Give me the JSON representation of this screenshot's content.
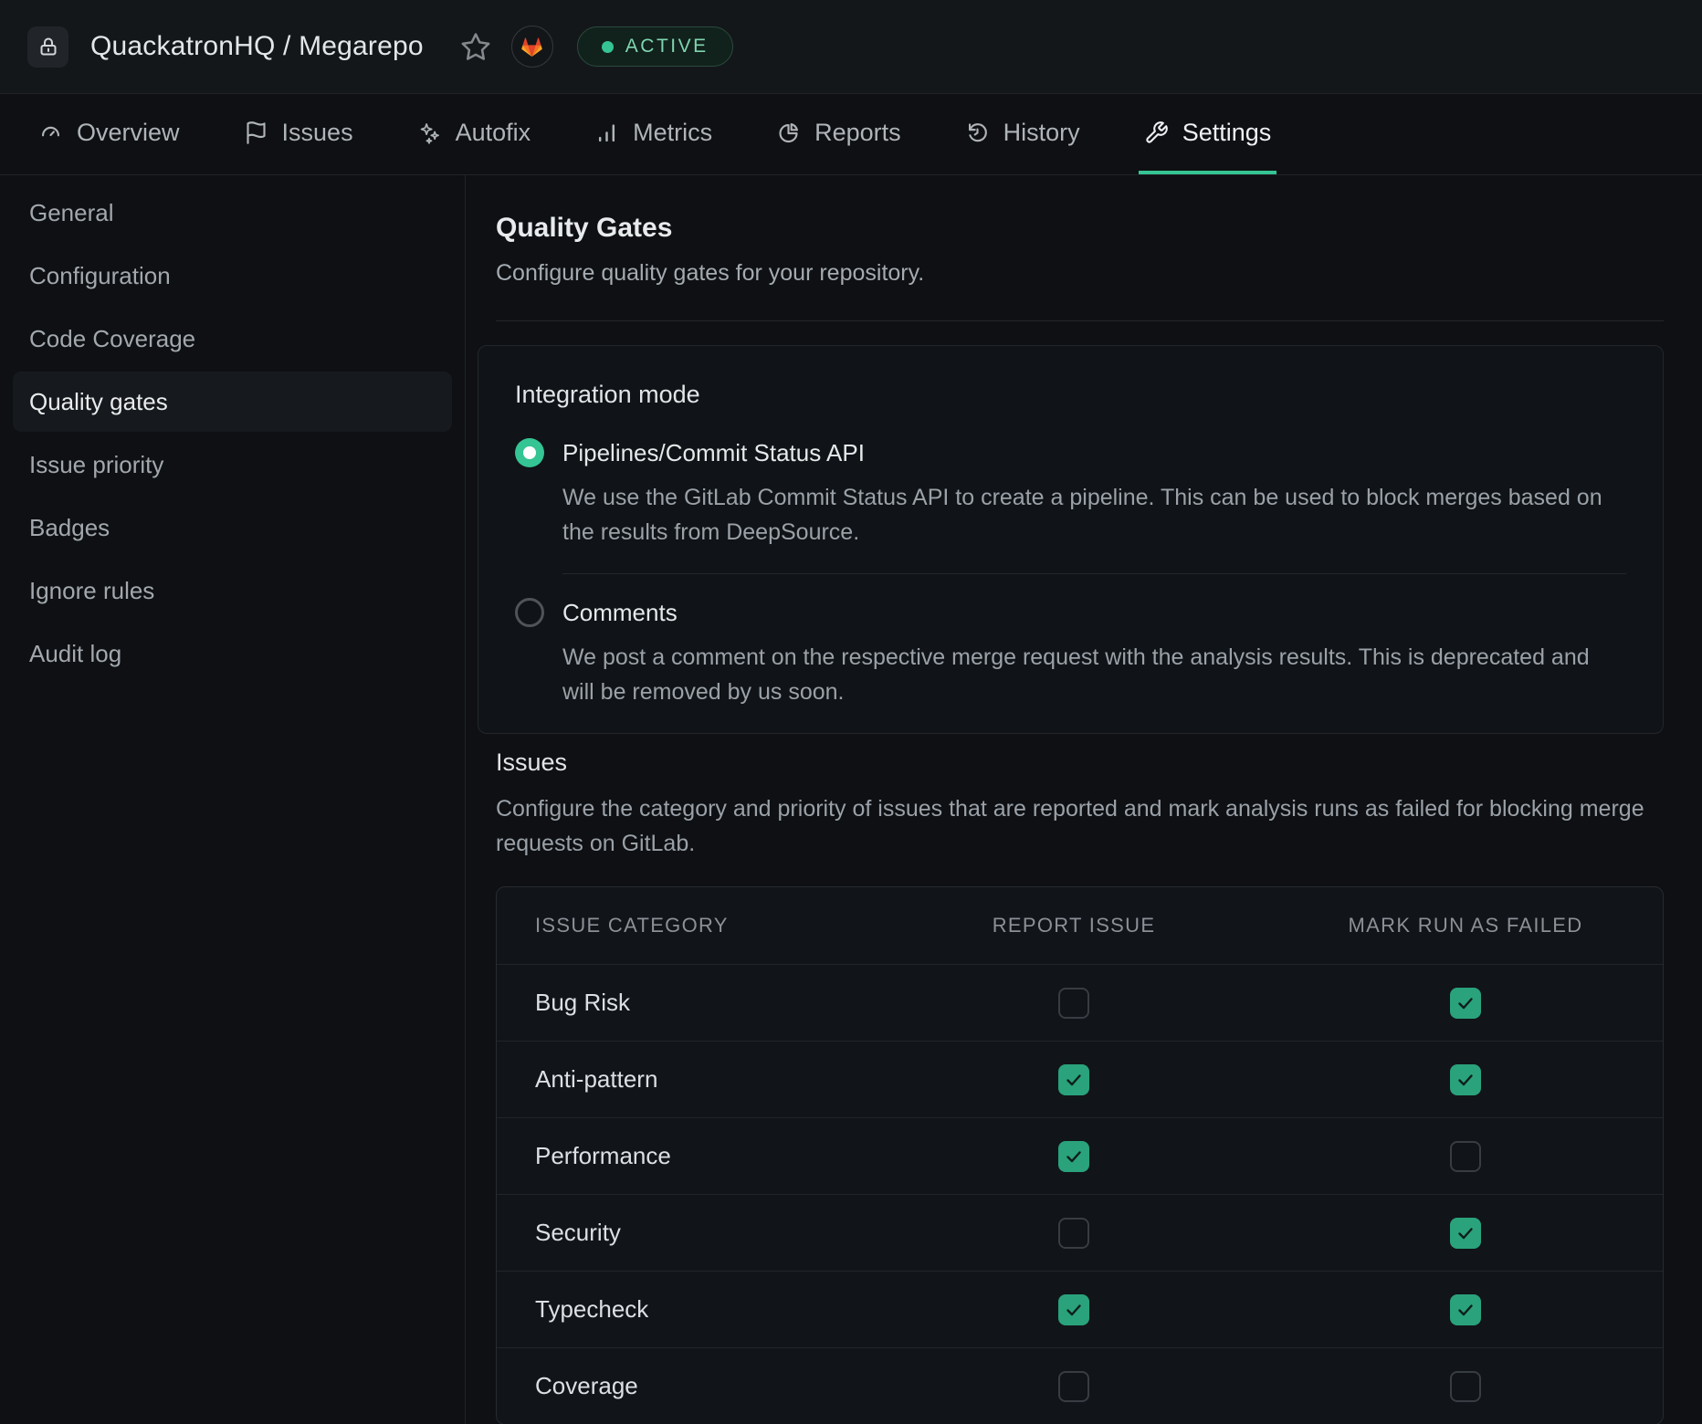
{
  "topbar": {
    "title": "QuackatronHQ / Megarepo",
    "status": "ACTIVE",
    "icons": [
      "lock-icon",
      "star-icon",
      "gitlab-icon"
    ]
  },
  "tabs": [
    {
      "label": "Overview",
      "icon": "gauge-icon",
      "active": false
    },
    {
      "label": "Issues",
      "icon": "flag-icon",
      "active": false
    },
    {
      "label": "Autofix",
      "icon": "sparkles-icon",
      "active": false
    },
    {
      "label": "Metrics",
      "icon": "bar-chart-icon",
      "active": false
    },
    {
      "label": "Reports",
      "icon": "pie-chart-icon",
      "active": false
    },
    {
      "label": "History",
      "icon": "history-icon",
      "active": false
    },
    {
      "label": "Settings",
      "icon": "wrench-icon",
      "active": true
    }
  ],
  "sidebar": {
    "items": [
      {
        "label": "General",
        "active": false
      },
      {
        "label": "Configuration",
        "active": false
      },
      {
        "label": "Code Coverage",
        "active": false
      },
      {
        "label": "Quality gates",
        "active": true
      },
      {
        "label": "Issue priority",
        "active": false
      },
      {
        "label": "Badges",
        "active": false
      },
      {
        "label": "Ignore rules",
        "active": false
      },
      {
        "label": "Audit log",
        "active": false
      }
    ]
  },
  "main": {
    "title": "Quality Gates",
    "subtitle": "Configure quality gates for your repository.",
    "integration": {
      "title": "Integration mode",
      "options": [
        {
          "label": "Pipelines/Commit Status API",
          "description": "We use the GitLab Commit Status API to create a pipeline. This can be used to block merges based on the results from DeepSource.",
          "selected": true
        },
        {
          "label": "Comments",
          "description": "We post a comment on the respective merge request with the analysis results. This is deprecated and will be removed by us soon.",
          "selected": false
        }
      ]
    },
    "issues": {
      "title": "Issues",
      "description": "Configure the category and priority of issues that are reported and mark analysis runs as failed for blocking merge requests on GitLab.",
      "table": {
        "columns": [
          "ISSUE CATEGORY",
          "REPORT ISSUE",
          "MARK RUN AS FAILED"
        ],
        "rows": [
          {
            "category": "Bug Risk",
            "report_issue": false,
            "mark_run_as_failed": true
          },
          {
            "category": "Anti-pattern",
            "report_issue": true,
            "mark_run_as_failed": true
          },
          {
            "category": "Performance",
            "report_issue": true,
            "mark_run_as_failed": false
          },
          {
            "category": "Security",
            "report_issue": false,
            "mark_run_as_failed": true
          },
          {
            "category": "Typecheck",
            "report_issue": true,
            "mark_run_as_failed": true
          },
          {
            "category": "Coverage",
            "report_issue": false,
            "mark_run_as_failed": false
          }
        ]
      }
    }
  },
  "colors": {
    "accent": "#35c493",
    "checkbox_checked": "#2aa27b",
    "status_text": "#7fd5b0",
    "gitlab_orange": "#FC6D26",
    "gitlab_red": "#E24329",
    "gitlab_yellow": "#FCA326"
  }
}
